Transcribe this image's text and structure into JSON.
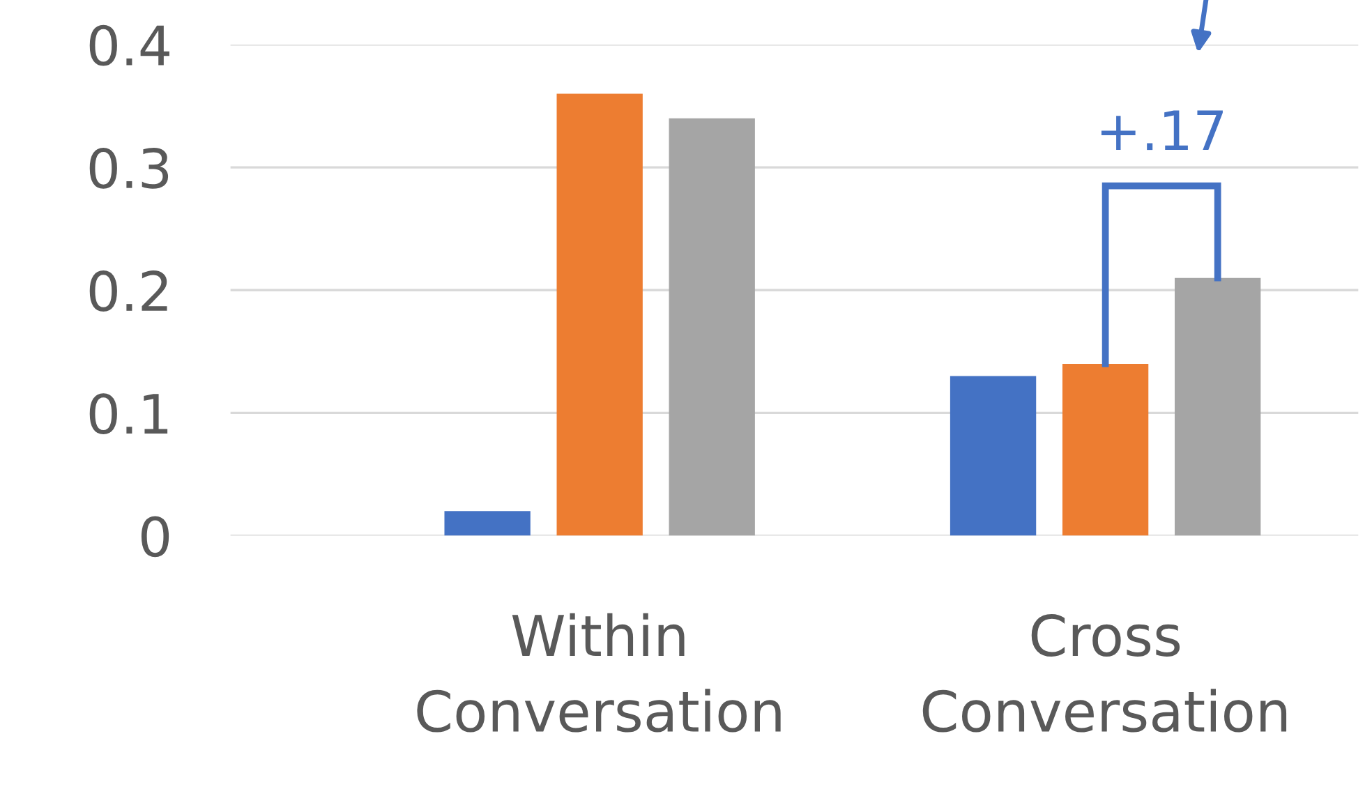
{
  "chart_data": {
    "type": "bar",
    "categories": [
      "Within Conversation",
      "Cross Conversation"
    ],
    "series": [
      {
        "color": "#4472c4",
        "values": [
          0.02,
          0.13
        ]
      },
      {
        "color": "#ed7d31",
        "values": [
          0.36,
          0.14
        ]
      },
      {
        "color": "#a5a5a5",
        "values": [
          0.34,
          0.21
        ]
      }
    ],
    "ylim": [
      0,
      0.4
    ],
    "yticks": [
      0,
      0.1,
      0.2,
      0.3,
      0.4
    ],
    "grid": "y",
    "annotations": [
      "+.17"
    ]
  }
}
